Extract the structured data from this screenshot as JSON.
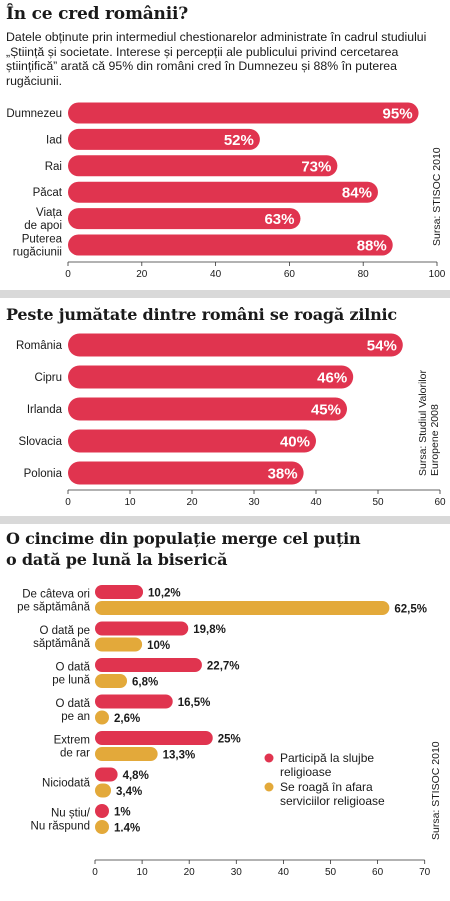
{
  "colors": {
    "red": "#e0344f",
    "gold": "#e3a93a",
    "separator": "#d9d9d9"
  },
  "chart_data": [
    {
      "type": "bar",
      "orientation": "horizontal",
      "title": "În ce cred românii?",
      "subtitle": "Datele obținute prin intermediul chestionarelor administrate în cadrul studiului „Știință și societate. Interese și percepții ale publicului privind cercetarea științifică” arată că 95% din români cred în Dumnezeu și 88% în puterea rugăciunii.",
      "categories": [
        [
          "Dumnezeu"
        ],
        [
          "Iad"
        ],
        [
          "Rai"
        ],
        [
          "Păcat"
        ],
        [
          "Viața",
          "de apoi"
        ],
        [
          "Puterea",
          "rugăciunii"
        ]
      ],
      "values": [
        95,
        52,
        73,
        84,
        63,
        88
      ],
      "value_labels": [
        "95%",
        "52%",
        "73%",
        "84%",
        "63%",
        "88%"
      ],
      "xlim": [
        0,
        100
      ],
      "xticks": [
        0,
        20,
        40,
        60,
        80,
        100
      ],
      "source": "Sursa: STISOC 2010"
    },
    {
      "type": "bar",
      "orientation": "horizontal",
      "title": "Peste jumătate dintre români se roagă zilnic",
      "categories": [
        [
          "România"
        ],
        [
          "Cipru"
        ],
        [
          "Irlanda"
        ],
        [
          "Slovacia"
        ],
        [
          "Polonia"
        ]
      ],
      "values": [
        54,
        46,
        45,
        40,
        38
      ],
      "value_labels": [
        "54%",
        "46%",
        "45%",
        "40%",
        "38%"
      ],
      "xlim": [
        0,
        60
      ],
      "xticks": [
        0,
        10,
        20,
        30,
        40,
        50,
        60
      ],
      "source": [
        "Sursa: Studiul Valorilor",
        "Europene 2008"
      ]
    },
    {
      "type": "bar",
      "orientation": "horizontal",
      "title": [
        "O cincime din populație merge cel puțin",
        "o dată pe lună la biserică"
      ],
      "categories": [
        [
          "De câteva ori",
          "pe săptămână"
        ],
        [
          "O dată pe",
          "săptămână"
        ],
        [
          "O dată",
          "pe lună"
        ],
        [
          "O dată",
          "pe an"
        ],
        [
          "Extrem",
          "de rar"
        ],
        [
          "Niciodată"
        ],
        [
          "Nu știu/",
          "Nu răspund"
        ]
      ],
      "series": [
        {
          "name": "Participă la slujbe religioase",
          "legend_lines": [
            "Participă la slujbe",
            "religioase"
          ],
          "values": [
            10.2,
            19.8,
            22.7,
            16.5,
            25,
            4.8,
            1
          ],
          "value_labels": [
            "10,2%",
            "19,8%",
            "22,7%",
            "16,5%",
            "25%",
            "4,8%",
            "1%"
          ]
        },
        {
          "name": "Se roagă în afara serviciilor religioase",
          "legend_lines": [
            "Se roagă în afara",
            "serviciilor religioase"
          ],
          "values": [
            62.5,
            10,
            6.8,
            2.6,
            13.3,
            3.4,
            1.4
          ],
          "value_labels": [
            "62,5%",
            "10%",
            "6,8%",
            "2,6%",
            "13,3%",
            "3,4%",
            "1.4%"
          ]
        }
      ],
      "xlim": [
        0,
        70
      ],
      "xticks": [
        0,
        10,
        20,
        30,
        40,
        50,
        60,
        70
      ],
      "source": "Sursa: STISOC 2010"
    }
  ]
}
